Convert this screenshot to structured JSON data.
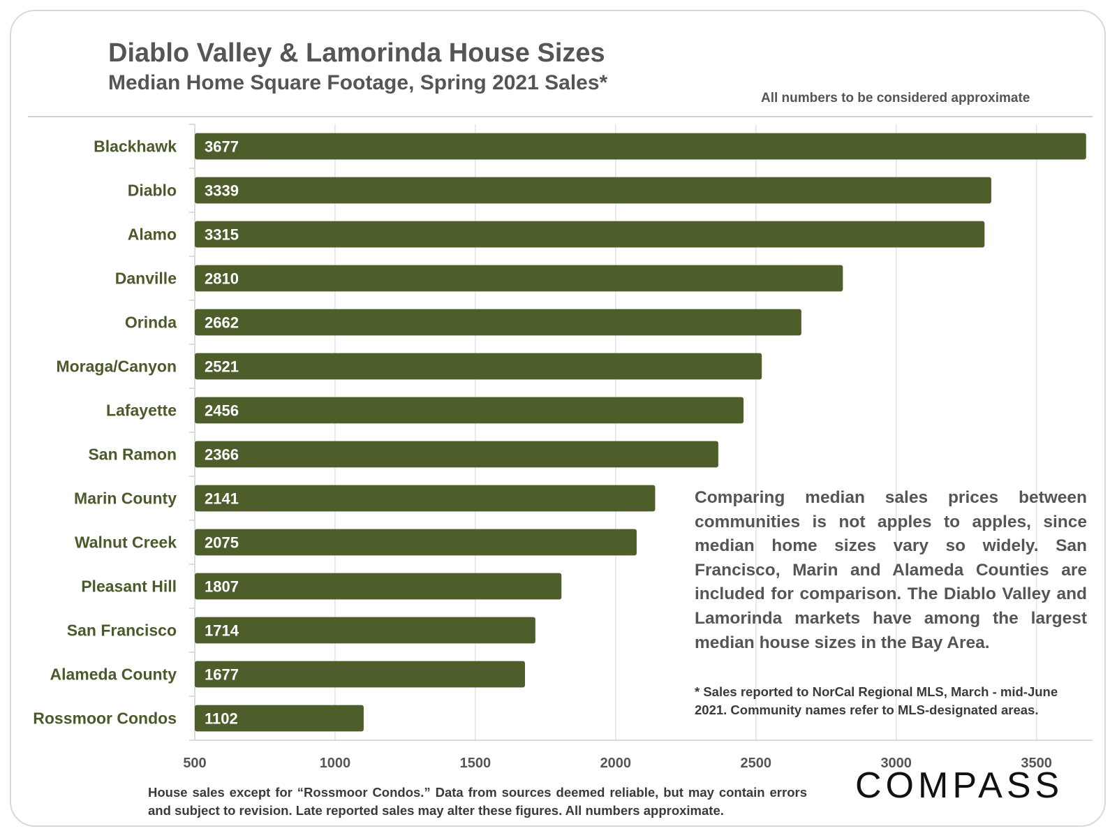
{
  "header": {
    "title": "Diablo Valley & Lamorinda House Sizes",
    "subtitle": "Median Home Square Footage, Spring 2021 Sales*",
    "disclaimer": "All numbers to be considered approximate"
  },
  "chart_data": {
    "type": "bar",
    "orientation": "horizontal",
    "title": "Diablo Valley & Lamorinda House Sizes",
    "subtitle": "Median Home Square Footage, Spring 2021 Sales*",
    "categories": [
      "Blackhawk",
      "Diablo",
      "Alamo",
      "Danville",
      "Orinda",
      "Moraga/Canyon",
      "Lafayette",
      "San Ramon",
      "Marin County",
      "Walnut Creek",
      "Pleasant Hill",
      "San Francisco",
      "Alameda County",
      "Rossmoor Condos"
    ],
    "values": [
      3677,
      3339,
      3315,
      2810,
      2662,
      2521,
      2456,
      2366,
      2141,
      2075,
      1807,
      1714,
      1677,
      1102
    ],
    "xlim": [
      500,
      3700
    ],
    "xticks": [
      "500",
      "1000",
      "1500",
      "2000",
      "2500",
      "3000",
      "3500"
    ],
    "bar_color": "#4d5e2b",
    "grid": true
  },
  "annotations": {
    "note": "Comparing median sales prices between communities is not apples to apples, since median home sizes vary so widely. San Francisco, Marin and Alameda Counties are included for comparison. The Diablo Valley and Lamorinda markets have among the largest median house sizes in the Bay Area.",
    "footnote": "* Sales reported to NorCal Regional MLS, March - mid-June 2021. Community names refer to MLS-designated areas."
  },
  "footer": {
    "source": "House sales except for “Rossmoor Condos.” Data from sources deemed reliable, but may contain errors and subject to revision. Late reported sales may alter these figures. All numbers approximate.",
    "logo_text": "COMPASS"
  }
}
